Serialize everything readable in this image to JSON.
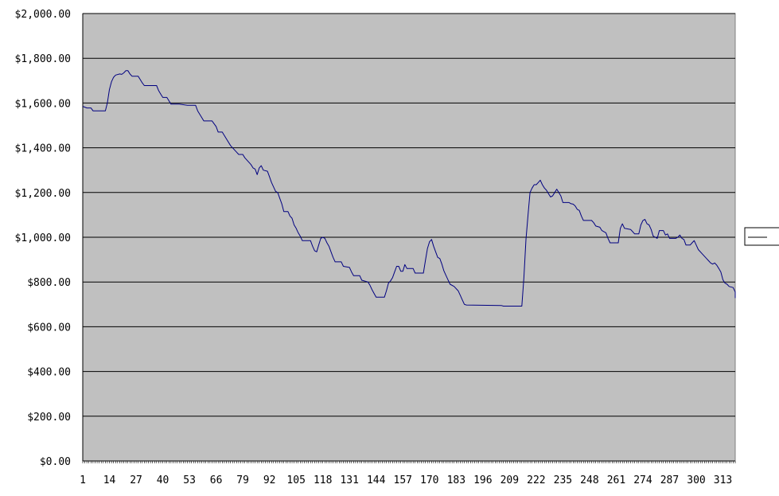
{
  "chart_data": {
    "type": "line",
    "title": "",
    "xlabel": "",
    "ylabel": "",
    "ylim": [
      0,
      2000
    ],
    "xlim": [
      1,
      319
    ],
    "grid": "horizontal",
    "legend": "right",
    "plot_background": "#c0c0c0",
    "line_color": "#000080",
    "y_tick_labels": [
      "$0.00",
      "$200.00",
      "$400.00",
      "$600.00",
      "$800.00",
      "$1,000.00",
      "$1,200.00",
      "$1,400.00",
      "$1,600.00",
      "$1,800.00",
      "$2,000.00"
    ],
    "x_tick_labels": [
      "1",
      "14",
      "27",
      "40",
      "53",
      "66",
      "79",
      "92",
      "105",
      "118",
      "131",
      "144",
      "157",
      "170",
      "183",
      "196",
      "209",
      "222",
      "235",
      "248",
      "261",
      "274",
      "287",
      "300",
      "313"
    ],
    "series": [
      {
        "name": "",
        "points": [
          [
            1,
            1585
          ],
          [
            3,
            1578
          ],
          [
            5,
            1578
          ],
          [
            6,
            1565
          ],
          [
            8,
            1565
          ],
          [
            10,
            1565
          ],
          [
            12,
            1565
          ],
          [
            13,
            1600
          ],
          [
            14,
            1660
          ],
          [
            15,
            1695
          ],
          [
            16,
            1715
          ],
          [
            17,
            1725
          ],
          [
            19,
            1730
          ],
          [
            20,
            1728
          ],
          [
            21,
            1735
          ],
          [
            22,
            1745
          ],
          [
            23,
            1745
          ],
          [
            24,
            1730
          ],
          [
            25,
            1720
          ],
          [
            28,
            1720
          ],
          [
            29,
            1705
          ],
          [
            30,
            1690
          ],
          [
            31,
            1678
          ],
          [
            37,
            1678
          ],
          [
            38,
            1655
          ],
          [
            39,
            1640
          ],
          [
            40,
            1625
          ],
          [
            42,
            1625
          ],
          [
            44,
            1595
          ],
          [
            48,
            1595
          ],
          [
            52,
            1590
          ],
          [
            56,
            1590
          ],
          [
            57,
            1565
          ],
          [
            59,
            1535
          ],
          [
            60,
            1520
          ],
          [
            64,
            1520
          ],
          [
            66,
            1495
          ],
          [
            67,
            1470
          ],
          [
            69,
            1470
          ],
          [
            71,
            1440
          ],
          [
            73,
            1410
          ],
          [
            74,
            1400
          ],
          [
            76,
            1380
          ],
          [
            77,
            1370
          ],
          [
            79,
            1370
          ],
          [
            80,
            1355
          ],
          [
            81,
            1345
          ],
          [
            83,
            1325
          ],
          [
            84,
            1310
          ],
          [
            85,
            1305
          ],
          [
            86,
            1280
          ],
          [
            87,
            1310
          ],
          [
            88,
            1320
          ],
          [
            89,
            1300
          ],
          [
            91,
            1295
          ],
          [
            92,
            1270
          ],
          [
            93,
            1245
          ],
          [
            94,
            1225
          ],
          [
            95,
            1205
          ],
          [
            96,
            1200
          ],
          [
            97,
            1175
          ],
          [
            98,
            1150
          ],
          [
            99,
            1115
          ],
          [
            101,
            1115
          ],
          [
            102,
            1095
          ],
          [
            103,
            1085
          ],
          [
            104,
            1055
          ],
          [
            105,
            1040
          ],
          [
            106,
            1020
          ],
          [
            107,
            1005
          ],
          [
            108,
            985
          ],
          [
            112,
            985
          ],
          [
            113,
            960
          ],
          [
            114,
            940
          ],
          [
            115,
            935
          ],
          [
            116,
            965
          ],
          [
            117,
            995
          ],
          [
            118,
            1000
          ],
          [
            119,
            995
          ],
          [
            120,
            975
          ],
          [
            121,
            960
          ],
          [
            122,
            935
          ],
          [
            123,
            910
          ],
          [
            124,
            890
          ],
          [
            127,
            890
          ],
          [
            128,
            870
          ],
          [
            131,
            865
          ],
          [
            132,
            845
          ],
          [
            133,
            828
          ],
          [
            136,
            828
          ],
          [
            137,
            808
          ],
          [
            140,
            800
          ],
          [
            141,
            785
          ],
          [
            142,
            765
          ],
          [
            143,
            748
          ],
          [
            144,
            732
          ],
          [
            148,
            732
          ],
          [
            149,
            760
          ],
          [
            150,
            795
          ],
          [
            151,
            805
          ],
          [
            152,
            820
          ],
          [
            153,
            845
          ],
          [
            154,
            870
          ],
          [
            155,
            870
          ],
          [
            156,
            848
          ],
          [
            157,
            848
          ],
          [
            158,
            878
          ],
          [
            159,
            860
          ],
          [
            162,
            860
          ],
          [
            163,
            840
          ],
          [
            167,
            840
          ],
          [
            168,
            895
          ],
          [
            169,
            950
          ],
          [
            170,
            980
          ],
          [
            171,
            990
          ],
          [
            172,
            960
          ],
          [
            173,
            935
          ],
          [
            174,
            910
          ],
          [
            175,
            905
          ],
          [
            176,
            880
          ],
          [
            177,
            850
          ],
          [
            178,
            830
          ],
          [
            179,
            810
          ],
          [
            180,
            790
          ],
          [
            182,
            780
          ],
          [
            184,
            760
          ],
          [
            185,
            740
          ],
          [
            186,
            720
          ],
          [
            187,
            700
          ],
          [
            188,
            697
          ],
          [
            205,
            695
          ],
          [
            206,
            692
          ],
          [
            215,
            692
          ],
          [
            216,
            820
          ],
          [
            217,
            990
          ],
          [
            218,
            1100
          ],
          [
            219,
            1200
          ],
          [
            220,
            1220
          ],
          [
            221,
            1235
          ],
          [
            222,
            1235
          ],
          [
            223,
            1245
          ],
          [
            224,
            1255
          ],
          [
            225,
            1235
          ],
          [
            226,
            1220
          ],
          [
            227,
            1210
          ],
          [
            228,
            1195
          ],
          [
            229,
            1180
          ],
          [
            230,
            1185
          ],
          [
            231,
            1200
          ],
          [
            232,
            1215
          ],
          [
            233,
            1200
          ],
          [
            234,
            1185
          ],
          [
            235,
            1155
          ],
          [
            238,
            1155
          ],
          [
            239,
            1150
          ],
          [
            240,
            1148
          ],
          [
            241,
            1140
          ],
          [
            242,
            1125
          ],
          [
            243,
            1120
          ],
          [
            244,
            1095
          ],
          [
            245,
            1075
          ],
          [
            249,
            1075
          ],
          [
            250,
            1065
          ],
          [
            251,
            1050
          ],
          [
            253,
            1045
          ],
          [
            254,
            1030
          ],
          [
            256,
            1020
          ],
          [
            257,
            995
          ],
          [
            258,
            975
          ],
          [
            262,
            975
          ],
          [
            263,
            1040
          ],
          [
            264,
            1060
          ],
          [
            265,
            1040
          ],
          [
            268,
            1035
          ],
          [
            269,
            1025
          ],
          [
            270,
            1015
          ],
          [
            272,
            1015
          ],
          [
            273,
            1055
          ],
          [
            274,
            1075
          ],
          [
            275,
            1080
          ],
          [
            276,
            1060
          ],
          [
            277,
            1055
          ],
          [
            278,
            1035
          ],
          [
            279,
            1005
          ],
          [
            281,
            995
          ],
          [
            282,
            1030
          ],
          [
            284,
            1030
          ],
          [
            285,
            1010
          ],
          [
            286,
            1015
          ],
          [
            287,
            995
          ],
          [
            290,
            995
          ],
          [
            291,
            1000
          ],
          [
            292,
            1010
          ],
          [
            293,
            995
          ],
          [
            294,
            990
          ],
          [
            295,
            965
          ],
          [
            297,
            965
          ],
          [
            298,
            975
          ],
          [
            299,
            985
          ],
          [
            300,
            965
          ],
          [
            301,
            945
          ],
          [
            303,
            925
          ],
          [
            305,
            905
          ],
          [
            306,
            895
          ],
          [
            307,
            885
          ],
          [
            308,
            880
          ],
          [
            309,
            885
          ],
          [
            310,
            875
          ],
          [
            311,
            860
          ],
          [
            312,
            845
          ],
          [
            313,
            810
          ],
          [
            314,
            795
          ],
          [
            315,
            790
          ],
          [
            316,
            780
          ],
          [
            318,
            775
          ],
          [
            319,
            755
          ],
          [
            320,
            750
          ],
          [
            321,
            728
          ],
          [
            324,
            728
          ]
        ]
      }
    ]
  }
}
